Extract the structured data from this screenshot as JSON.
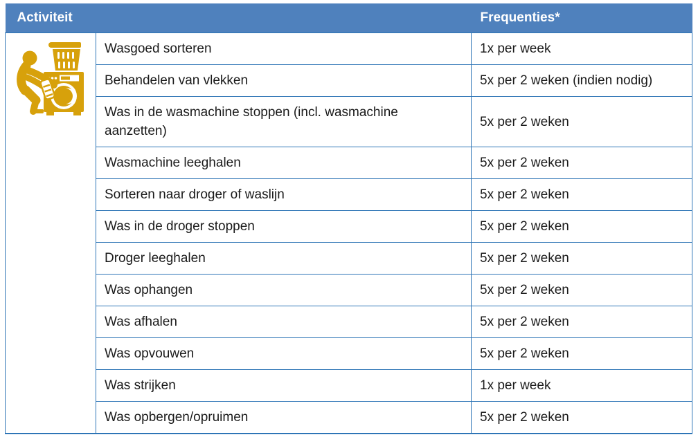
{
  "table": {
    "headers": {
      "activity": "Activiteit",
      "frequency": "Frequenties*"
    },
    "icon": "laundry-icon",
    "rows": [
      {
        "activity": "Wasgoed sorteren",
        "frequency": "1x per week"
      },
      {
        "activity": "Behandelen van vlekken",
        "frequency": "5x per 2 weken (indien nodig)"
      },
      {
        "activity": "Was in de wasmachine stoppen (incl. wasmachine aanzetten)",
        "frequency": "5x per 2 weken"
      },
      {
        "activity": "Wasmachine leeghalen",
        "frequency": "5x per 2 weken"
      },
      {
        "activity": "Sorteren naar droger of waslijn",
        "frequency": "5x per 2 weken"
      },
      {
        "activity": "Was in de droger stoppen",
        "frequency": "5x per 2 weken"
      },
      {
        "activity": "Droger leeghalen",
        "frequency": "5x per 2 weken"
      },
      {
        "activity": "Was ophangen",
        "frequency": "5x per 2 weken"
      },
      {
        "activity": "Was afhalen",
        "frequency": "5x per 2 weken"
      },
      {
        "activity": "Was opvouwen",
        "frequency": "5x per 2 weken"
      },
      {
        "activity": "Was strijken",
        "frequency": "1x per week"
      },
      {
        "activity": "Was opbergen/opruimen",
        "frequency": "5x per 2 weken"
      }
    ],
    "colors": {
      "header_bg": "#4F81BD",
      "border": "#2E75B6",
      "icon_gold": "#D7A10B",
      "header_text": "#FFFFFF",
      "body_text": "#1A1A1A"
    }
  }
}
